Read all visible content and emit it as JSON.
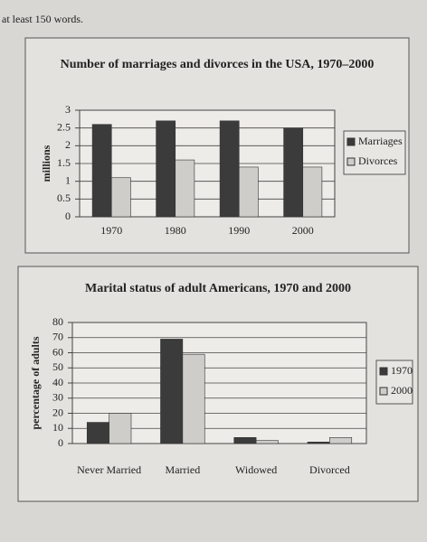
{
  "page_text": "at least 150 words.",
  "chart_data": [
    {
      "type": "bar",
      "title": "Number of marriages and divorces in the USA, 1970–2000",
      "y_label": "millions",
      "categories": [
        "1970",
        "1980",
        "1990",
        "2000"
      ],
      "series": [
        {
          "name": "Marriages",
          "color": "#3b3b3b",
          "values": [
            2.6,
            2.7,
            2.7,
            2.5
          ]
        },
        {
          "name": "Divorces",
          "color": "#cfcdca",
          "values": [
            1.1,
            1.6,
            1.4,
            1.4
          ]
        }
      ],
      "ylim": [
        0,
        3
      ],
      "yticks": [
        0,
        0.5,
        1,
        1.5,
        2,
        2.5,
        3
      ],
      "grid": true,
      "legend": "right"
    },
    {
      "type": "bar",
      "title": "Marital status of adult Americans, 1970 and 2000",
      "y_label": "percentage of adults",
      "categories": [
        "Never Married",
        "Married",
        "Widowed",
        "Divorced"
      ],
      "series": [
        {
          "name": "1970",
          "color": "#3b3b3b",
          "values": [
            14,
            69,
            4,
            1
          ]
        },
        {
          "name": "2000",
          "color": "#cfcdca",
          "values": [
            20,
            59,
            2,
            4
          ]
        }
      ],
      "ylim": [
        0,
        80
      ],
      "yticks": [
        0,
        10,
        20,
        30,
        40,
        50,
        60,
        70,
        80
      ],
      "grid": true,
      "legend": "right"
    }
  ]
}
